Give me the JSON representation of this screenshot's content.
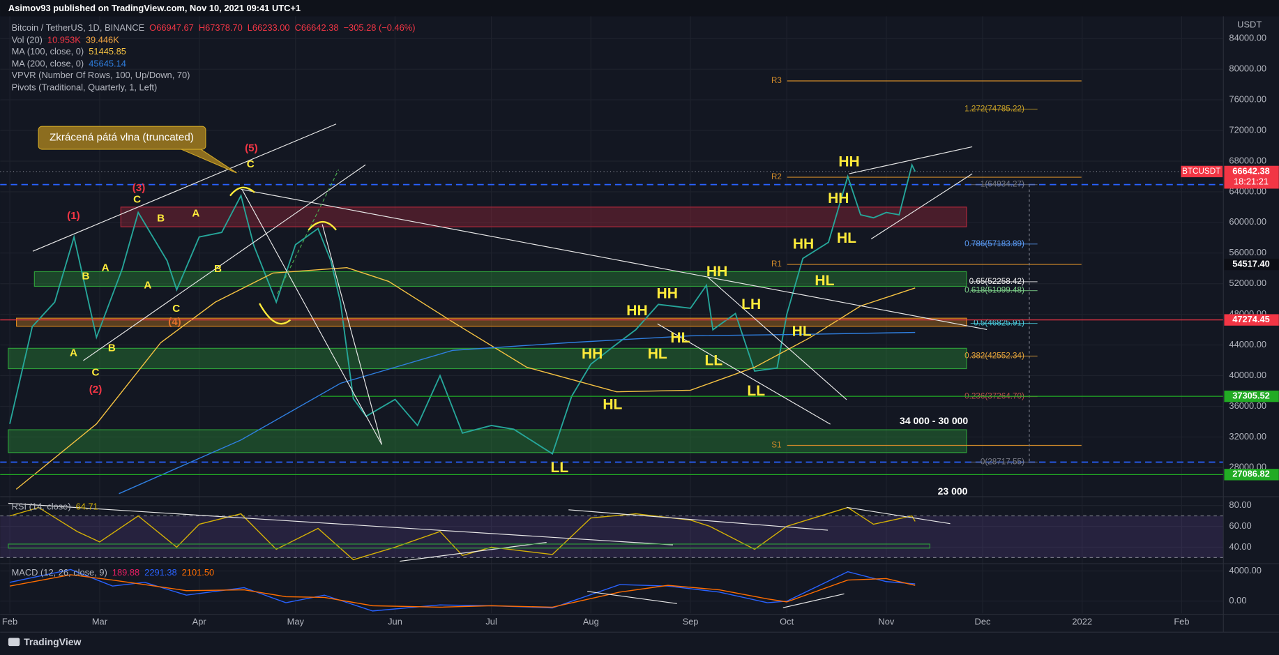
{
  "header": {
    "publisher": "Asimov93 published on TradingView.com, Nov 10, 2021 09:41 UTC+1"
  },
  "footer": "TradingView",
  "chart_data": [
    {
      "type": "line",
      "axis_unit": "USDT",
      "xlim": [
        "2021-01-29",
        "2022-02-14"
      ],
      "xticks": [
        {
          "value": "2021-02-01",
          "label": "Feb"
        },
        {
          "value": "2021-03-01",
          "label": "Mar"
        },
        {
          "value": "2021-04-01",
          "label": "Apr"
        },
        {
          "value": "2021-05-01",
          "label": "May"
        },
        {
          "value": "2021-06-01",
          "label": "Jun"
        },
        {
          "value": "2021-07-01",
          "label": "Jul"
        },
        {
          "value": "2021-08-01",
          "label": "Aug"
        },
        {
          "value": "2021-09-01",
          "label": "Sep"
        },
        {
          "value": "2021-10-01",
          "label": "Oct"
        },
        {
          "value": "2021-11-01",
          "label": "Nov"
        },
        {
          "value": "2021-12-01",
          "label": "Dec"
        },
        {
          "value": "2022-01-01",
          "label": "2022"
        },
        {
          "value": "2022-02-01",
          "label": "Feb"
        }
      ],
      "ylim": [
        24300,
        86900
      ],
      "yticks": [
        {
          "value": 28000,
          "label": "28000.00"
        },
        {
          "value": 32000,
          "label": "32000.00"
        },
        {
          "value": 36000,
          "label": "36000.00"
        },
        {
          "value": 40000,
          "label": "40000.00"
        },
        {
          "value": 44000,
          "label": "44000.00"
        },
        {
          "value": 48000,
          "label": "48000.00"
        },
        {
          "value": 52000,
          "label": "52000.00"
        },
        {
          "value": 56000,
          "label": "56000.00"
        },
        {
          "value": 60000,
          "label": "60000.00"
        },
        {
          "value": 64000,
          "label": "64000.00"
        },
        {
          "value": 68000,
          "label": "68000.00"
        },
        {
          "value": 72000,
          "label": "72000.00"
        },
        {
          "value": 76000,
          "label": "76000.00"
        },
        {
          "value": 80000,
          "label": "80000.00"
        },
        {
          "value": 84000,
          "label": "84000.00"
        }
      ],
      "grid": true,
      "legend": {
        "ohlc": [
          "O66947.67",
          "H67378.70",
          "L66233.00",
          "C66642.38",
          "−305.28 (−0.46%)"
        ],
        "readouts": [
          "51445.85",
          "45645.14"
        ],
        "indicators": [
          {
            "name": "Vol (20)",
            "readouts": [
              "10.953K",
              "39.446K"
            ]
          },
          {
            "name": "VPVR (Number Of Rows, 100, Up/Down, 70)"
          },
          {
            "name": "Pivots (Traditional, Quarterly, 1, Left)"
          }
        ]
      },
      "series": [
        {
          "name": "Bitcoin / TetherUS, 1D, BINANCE",
          "color": "#26a69a",
          "x": [
            "2021-02-01",
            "2021-02-08",
            "2021-02-15",
            "2021-02-21",
            "2021-02-28",
            "2021-03-08",
            "2021-03-13",
            "2021-03-22",
            "2021-03-25",
            "2021-04-01",
            "2021-04-08",
            "2021-04-14",
            "2021-04-18",
            "2021-04-25",
            "2021-05-01",
            "2021-05-08",
            "2021-05-12",
            "2021-05-15",
            "2021-05-19",
            "2021-05-23",
            "2021-06-01",
            "2021-06-08",
            "2021-06-15",
            "2021-06-22",
            "2021-07-01",
            "2021-07-08",
            "2021-07-20",
            "2021-07-26",
            "2021-08-01",
            "2021-08-08",
            "2021-08-15",
            "2021-08-22",
            "2021-09-01",
            "2021-09-06",
            "2021-09-08",
            "2021-09-15",
            "2021-09-21",
            "2021-09-28",
            "2021-10-01",
            "2021-10-06",
            "2021-10-14",
            "2021-10-20",
            "2021-10-24",
            "2021-10-28",
            "2021-11-01",
            "2021-11-05",
            "2021-11-09",
            "2021-11-10"
          ],
          "values": [
            33700,
            46400,
            49600,
            58100,
            45000,
            53900,
            61300,
            55000,
            51200,
            58100,
            58700,
            63500,
            57000,
            49600,
            57100,
            59200,
            55000,
            49600,
            37000,
            34700,
            36900,
            33500,
            40000,
            32500,
            33500,
            33000,
            29800,
            37300,
            41500,
            43800,
            46000,
            49300,
            48800,
            51800,
            46000,
            48100,
            40600,
            41000,
            48000,
            55300,
            57400,
            66000,
            61000,
            60600,
            61300,
            61000,
            67500,
            66642.38
          ]
        },
        {
          "name": "MA (100, close, 0)",
          "color": "#f5c242",
          "x": [
            "2021-02-03",
            "2021-02-28",
            "2021-03-20",
            "2021-04-06",
            "2021-04-24",
            "2021-05-17",
            "2021-05-30",
            "2021-06-19",
            "2021-07-12",
            "2021-08-09",
            "2021-09-01",
            "2021-09-21",
            "2021-10-08",
            "2021-10-24",
            "2021-11-10"
          ],
          "values": [
            25170,
            33700,
            44300,
            49600,
            53400,
            54100,
            52300,
            47000,
            41100,
            37900,
            38100,
            41100,
            44900,
            49100,
            51445.85
          ]
        },
        {
          "name": "MA (200, close, 0)",
          "color": "#2f7fe0",
          "x": [
            "2021-03-07",
            "2021-04-14",
            "2021-05-15",
            "2021-06-19",
            "2021-07-25",
            "2021-09-01",
            "2021-10-08",
            "2021-11-10"
          ],
          "values": [
            24600,
            31600,
            39000,
            43300,
            44300,
            45200,
            45400,
            45645.14
          ]
        }
      ],
      "zones": [
        {
          "range": [
            59430,
            62000
          ],
          "color": "#b0283c"
        },
        {
          "range": [
            51660,
            53570
          ],
          "color": "#2e9e3a"
        },
        {
          "range": [
            46450,
            47500
          ],
          "color": "#e08a1e"
        },
        {
          "range": [
            40910,
            43570
          ],
          "color": "#2e9e3a"
        },
        {
          "range": [
            29960,
            32940
          ],
          "color": "#2e9e3a"
        }
      ],
      "fib_levels": [
        {
          "value": 74785.22,
          "label": "1.272(74785.22)",
          "color": "#c9a227"
        },
        {
          "value": 64934.27,
          "label": "1(64934.27)",
          "color": "#787b86"
        },
        {
          "value": 57183.89,
          "label": "0.786(57183.89)",
          "color": "#5b9cf6"
        },
        {
          "value": 52258.42,
          "label": "0.65(52258.42)",
          "color": "#f0f0f0"
        },
        {
          "value": 51099.48,
          "label": "0.618(51099.48)",
          "color": "#7fd38a"
        },
        {
          "value": 46825.91,
          "label": "0.5(46825.91)",
          "color": "#4dd0e1"
        },
        {
          "value": 42552.34,
          "label": "0.382(42552.34)",
          "color": "#e0a13a"
        },
        {
          "value": 37264.7,
          "label": "0.236(37264.70)",
          "color": "#c0504d"
        },
        {
          "value": 28717.55,
          "label": "0(28717.55)",
          "color": "#787b86"
        }
      ],
      "pivots": [
        {
          "label": "R3",
          "value": 78470
        },
        {
          "label": "R2",
          "value": 65900
        },
        {
          "label": "R1",
          "value": 54517.4
        },
        {
          "label": "S1",
          "value": 30900
        }
      ],
      "pivot_color": "#d08a2a",
      "symbol": "BTCUSDT",
      "countdown": "18:21:21",
      "price_tags": [
        {
          "value": 66642.38,
          "label": "66642.38",
          "color": "#f23645"
        },
        {
          "value": 54517.4,
          "label": "54517.40",
          "color": "#0c0e15"
        },
        {
          "value": 47274.45,
          "label": "47274.45",
          "color": "#f23645"
        },
        {
          "value": 37305.52,
          "label": "37305.52",
          "color": "#22ab24"
        },
        {
          "value": 27086.82,
          "label": "27086.82",
          "color": "#22ab24"
        }
      ],
      "annotations": [
        "Zkrácená pátá vlna (truncated)",
        "(5)",
        "C",
        "(3)",
        "C",
        "(1)",
        "B",
        "A",
        "B",
        "A",
        "A",
        "B",
        "C",
        "(4)",
        "A",
        "B",
        "C",
        "(2)",
        "HH",
        "HH",
        "HH",
        "HL",
        "HL",
        "HH",
        "HH",
        "HH",
        "HL",
        "HL",
        "LH",
        "HL",
        "LL",
        "HH",
        "HL",
        "LL",
        "LL",
        "34 000 - 30 000",
        "23 000"
      ]
    },
    {
      "type": "line",
      "xlim": [
        "2021-01-29",
        "2022-02-14"
      ],
      "ylim": [
        25,
        86
      ],
      "yticks": [
        {
          "value": 40,
          "label": "40.00"
        },
        {
          "value": 60,
          "label": "60.00"
        },
        {
          "value": 80,
          "label": "80.00"
        }
      ],
      "band": [
        30,
        70
      ],
      "band_color": "#7e57c2",
      "legend": {
        "readouts": [
          "64.71"
        ]
      },
      "series": [
        {
          "name": "RSI (14, close)",
          "color": "#d4b106",
          "x": [
            "2021-02-01",
            "2021-02-10",
            "2021-02-22",
            "2021-03-01",
            "2021-03-13",
            "2021-03-25",
            "2021-04-01",
            "2021-04-14",
            "2021-04-25",
            "2021-05-08",
            "2021-05-19",
            "2021-06-01",
            "2021-06-15",
            "2021-06-22",
            "2021-07-01",
            "2021-07-20",
            "2021-08-01",
            "2021-08-15",
            "2021-09-01",
            "2021-09-07",
            "2021-09-21",
            "2021-10-01",
            "2021-10-20",
            "2021-10-28",
            "2021-11-09",
            "2021-11-10"
          ],
          "values": [
            70,
            78,
            55,
            45,
            70,
            40,
            62,
            72,
            38,
            58,
            28,
            40,
            55,
            32,
            40,
            33,
            68,
            72,
            66,
            60,
            38,
            60,
            78,
            62,
            70,
            64.71
          ]
        }
      ]
    },
    {
      "type": "line",
      "title": "MACD (12, 26, close, 9)",
      "xlim": [
        "2021-01-29",
        "2022-02-14"
      ],
      "ylim": [
        -1620,
        4865
      ],
      "yticks": [
        {
          "value": 0,
          "label": "0.00"
        },
        {
          "value": 4000,
          "label": "4000.00"
        }
      ],
      "legend": {
        "readouts": [
          "189.88",
          "2291.38",
          "2101.50"
        ]
      },
      "series": [
        {
          "name": "MACD",
          "color": "#2962ff",
          "x": [
            "2021-02-01",
            "2021-02-20",
            "2021-03-05",
            "2021-03-15",
            "2021-03-28",
            "2021-04-15",
            "2021-04-28",
            "2021-05-10",
            "2021-05-25",
            "2021-06-15",
            "2021-07-01",
            "2021-07-20",
            "2021-08-10",
            "2021-08-25",
            "2021-09-10",
            "2021-09-25",
            "2021-10-01",
            "2021-10-20",
            "2021-11-01",
            "2021-11-10"
          ],
          "values": [
            2500,
            4200,
            2000,
            2500,
            800,
            1800,
            -200,
            800,
            -1300,
            -500,
            -600,
            -900,
            2200,
            2000,
            1200,
            -200,
            0,
            3900,
            2600,
            2291.38
          ]
        },
        {
          "name": "Signal",
          "color": "#ff6d00",
          "x": [
            "2021-02-01",
            "2021-02-20",
            "2021-03-05",
            "2021-03-15",
            "2021-03-28",
            "2021-04-15",
            "2021-04-28",
            "2021-05-10",
            "2021-05-25",
            "2021-06-15",
            "2021-07-01",
            "2021-07-20",
            "2021-08-10",
            "2021-08-25",
            "2021-09-10",
            "2021-09-25",
            "2021-10-01",
            "2021-10-20",
            "2021-11-01",
            "2021-11-10"
          ],
          "values": [
            2000,
            3500,
            2800,
            2200,
            1400,
            1500,
            600,
            500,
            -600,
            -800,
            -600,
            -800,
            1200,
            2100,
            1500,
            300,
            -100,
            2800,
            3000,
            2101.5
          ]
        }
      ]
    }
  ]
}
